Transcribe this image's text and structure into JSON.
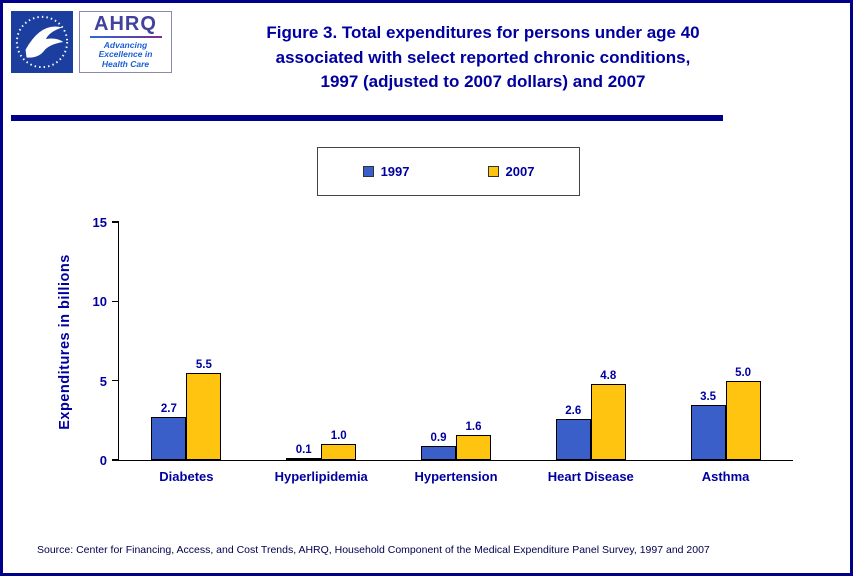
{
  "colors": {
    "navy_text": "#0000A0",
    "border_navy": "#00008B",
    "axis_black": "#000000",
    "series_1997": "#3A5FC8",
    "series_2007": "#FFC410"
  },
  "header": {
    "hhs_logo": "hhs-eagle-logo",
    "ahrq_acronym": "AHRQ",
    "ahrq_tagline_lines": [
      "Advancing",
      "Excellence in",
      "Health Care"
    ],
    "title_lines": [
      "Figure 3. Total expenditures for persons under age 40",
      "associated with select reported chronic conditions,",
      "1997 (adjusted to 2007 dollars) and 2007"
    ]
  },
  "chart_data": {
    "type": "bar",
    "categories": [
      "Diabetes",
      "Hyperlipidemia",
      "Hypertension",
      "Heart Disease",
      "Asthma"
    ],
    "series": [
      {
        "name": "1997",
        "color": "#3A5FC8",
        "values": [
          2.7,
          0.1,
          0.9,
          2.6,
          3.5
        ]
      },
      {
        "name": "2007",
        "color": "#FFC410",
        "values": [
          5.5,
          1.0,
          1.6,
          4.8,
          5.0
        ]
      }
    ],
    "title": "Figure 3. Total expenditures for persons under age 40 associated with select reported chronic conditions, 1997 (adjusted to 2007 dollars) and 2007",
    "xlabel": "",
    "ylabel": "Expenditures in billions",
    "ylim": [
      0,
      15
    ],
    "yticks": [
      0,
      5,
      10,
      15
    ],
    "grid": false,
    "legend_position": "top-center",
    "value_label_decimals": 1
  },
  "footer": {
    "source": "Source: Center for Financing, Access, and Cost Trends, AHRQ, Household Component of the Medical Expenditure Panel Survey, 1997 and 2007"
  }
}
